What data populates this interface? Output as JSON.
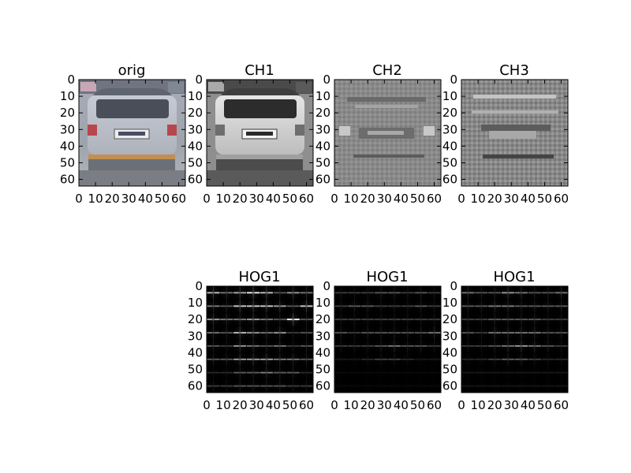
{
  "chart_data": [
    {
      "type": "image",
      "title": "orig",
      "content": "rear view of silver car (color)",
      "xticks": [
        "0",
        "10",
        "20",
        "30",
        "40",
        "50",
        "60"
      ],
      "yticks": [
        "0",
        "10",
        "20",
        "30",
        "40",
        "50",
        "60"
      ],
      "xlim": [
        0,
        64
      ],
      "ylim": [
        64,
        0
      ]
    },
    {
      "type": "image",
      "title": "CH1",
      "content": "grayscale channel 1 of car image",
      "xticks": [
        "0",
        "10",
        "20",
        "30",
        "40",
        "50",
        "60"
      ],
      "yticks": [
        "0",
        "10",
        "20",
        "30",
        "40",
        "50",
        "60"
      ],
      "xlim": [
        0,
        64
      ],
      "ylim": [
        64,
        0
      ]
    },
    {
      "type": "image",
      "title": "CH2",
      "content": "grayscale channel 2 of car image",
      "xticks": [
        "0",
        "10",
        "20",
        "30",
        "40",
        "50",
        "60"
      ],
      "yticks": [
        "0",
        "10",
        "20",
        "30",
        "40",
        "50",
        "60"
      ],
      "xlim": [
        0,
        64
      ],
      "ylim": [
        64,
        0
      ]
    },
    {
      "type": "image",
      "title": "CH3",
      "content": "grayscale channel 3 of car image",
      "xticks": [
        "0",
        "10",
        "20",
        "30",
        "40",
        "50",
        "60"
      ],
      "yticks": [
        "0",
        "10",
        "20",
        "30",
        "40",
        "50",
        "60"
      ],
      "xlim": [
        0,
        64
      ],
      "ylim": [
        64,
        0
      ]
    },
    {
      "type": "heatmap",
      "title": "HOG1",
      "content": "HOG visualization, 8x8 cells",
      "cells": 8,
      "strength": [
        [
          0.9,
          0.7,
          0.85,
          1.0,
          0.9,
          0.6,
          0.8,
          0.7
        ],
        [
          0.7,
          0.6,
          0.9,
          0.9,
          0.9,
          0.8,
          0.6,
          0.9
        ],
        [
          0.8,
          0.7,
          0.7,
          0.8,
          0.7,
          0.6,
          1.0,
          0.6
        ],
        [
          0.7,
          0.6,
          0.9,
          0.8,
          0.7,
          0.8,
          0.5,
          0.6
        ],
        [
          0.6,
          0.5,
          0.8,
          0.7,
          0.6,
          0.7,
          0.5,
          0.6
        ],
        [
          0.6,
          0.6,
          0.8,
          0.8,
          0.8,
          0.7,
          0.7,
          0.6
        ],
        [
          0.4,
          0.4,
          0.6,
          0.6,
          0.7,
          0.6,
          0.6,
          0.4
        ],
        [
          0.5,
          0.5,
          0.6,
          0.6,
          0.6,
          0.6,
          0.5,
          0.5
        ]
      ],
      "xticks": [
        "0",
        "10",
        "20",
        "30",
        "40",
        "50",
        "60"
      ],
      "yticks": [
        "0",
        "10",
        "20",
        "30",
        "40",
        "50",
        "60"
      ],
      "xlim": [
        0,
        64
      ],
      "ylim": [
        64,
        0
      ]
    },
    {
      "type": "heatmap",
      "title": "HOG1",
      "content": "HOG visualization, 8x8 cells",
      "cells": 8,
      "strength": [
        [
          0.5,
          0.5,
          0.5,
          0.6,
          0.6,
          0.5,
          0.6,
          0.5
        ],
        [
          0.5,
          0.6,
          0.6,
          0.5,
          0.5,
          0.5,
          0.6,
          0.5
        ],
        [
          0.5,
          0.5,
          0.5,
          0.5,
          0.5,
          0.5,
          0.5,
          0.5
        ],
        [
          0.6,
          0.5,
          0.6,
          0.6,
          0.6,
          0.6,
          0.6,
          0.7
        ],
        [
          0.5,
          0.5,
          0.5,
          0.6,
          0.7,
          0.6,
          0.6,
          0.5
        ],
        [
          0.3,
          0.3,
          0.4,
          0.5,
          0.5,
          0.4,
          0.3,
          0.3
        ],
        [
          0.2,
          0.2,
          0.2,
          0.2,
          0.2,
          0.2,
          0.2,
          0.2
        ],
        [
          0.2,
          0.2,
          0.2,
          0.2,
          0.2,
          0.2,
          0.2,
          0.2
        ]
      ],
      "xticks": [
        "0",
        "10",
        "20",
        "30",
        "40",
        "50",
        "60"
      ],
      "yticks": [
        "0",
        "10",
        "20",
        "30",
        "40",
        "50",
        "60"
      ],
      "xlim": [
        0,
        64
      ],
      "ylim": [
        64,
        0
      ]
    },
    {
      "type": "heatmap",
      "title": "HOG1",
      "content": "HOG visualization, 8x8 cells",
      "cells": 8,
      "strength": [
        [
          0.7,
          0.6,
          0.6,
          0.8,
          0.7,
          0.6,
          0.6,
          0.7
        ],
        [
          0.6,
          0.6,
          0.7,
          0.7,
          0.6,
          0.6,
          0.6,
          0.6
        ],
        [
          0.5,
          0.5,
          0.6,
          0.6,
          0.6,
          0.6,
          0.5,
          0.5
        ],
        [
          0.6,
          0.5,
          0.7,
          0.7,
          0.7,
          0.7,
          0.6,
          0.6
        ],
        [
          0.5,
          0.5,
          0.6,
          0.7,
          0.8,
          0.7,
          0.6,
          0.5
        ],
        [
          0.4,
          0.4,
          0.5,
          0.6,
          0.6,
          0.5,
          0.4,
          0.4
        ],
        [
          0.3,
          0.3,
          0.3,
          0.3,
          0.3,
          0.3,
          0.3,
          0.3
        ],
        [
          0.3,
          0.3,
          0.3,
          0.3,
          0.3,
          0.3,
          0.3,
          0.3
        ]
      ],
      "xticks": [
        "0",
        "10",
        "20",
        "30",
        "40",
        "50",
        "60"
      ],
      "yticks": [
        "0",
        "10",
        "20",
        "30",
        "40",
        "50",
        "60"
      ],
      "xlim": [
        0,
        64
      ],
      "ylim": [
        64,
        0
      ]
    }
  ]
}
